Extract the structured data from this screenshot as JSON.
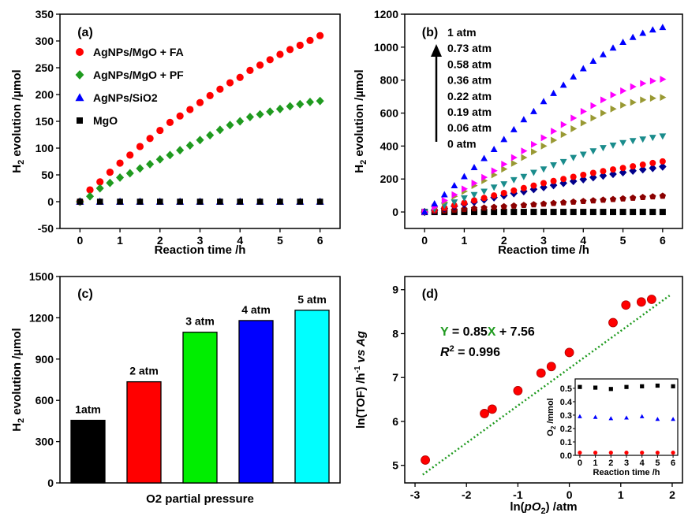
{
  "chart_data": [
    {
      "id": "a",
      "type": "scatter",
      "panel_label": "(a)",
      "xlabel": "Reaction time /h",
      "ylabel_main": "H",
      "ylabel_sub": "2",
      "ylabel_rest": " evolution /µmol",
      "xlim": [
        -0.5,
        6.5
      ],
      "ylim": [
        -50,
        350
      ],
      "xticks": [
        "0",
        "1",
        "2",
        "3",
        "4",
        "5",
        "6"
      ],
      "yticks": [
        "-50",
        "0",
        "50",
        "100",
        "150",
        "200",
        "250",
        "300",
        "350"
      ],
      "series": [
        {
          "name": "AgNPs/MgO + FA",
          "color": "#ff0000",
          "marker": "circle",
          "x": [
            0,
            0.25,
            0.5,
            0.75,
            1,
            1.25,
            1.5,
            1.75,
            2,
            2.25,
            2.5,
            2.75,
            3,
            3.25,
            3.5,
            3.75,
            4,
            4.25,
            4.5,
            4.75,
            5,
            5.25,
            5.5,
            5.75,
            6
          ],
          "y": [
            0,
            22,
            37,
            55,
            72,
            87,
            103,
            118,
            133,
            148,
            160,
            172,
            185,
            198,
            210,
            222,
            232,
            245,
            255,
            265,
            275,
            284,
            292,
            301,
            310
          ]
        },
        {
          "name": "AgNPs/MgO + PF",
          "color": "#1f9a1f",
          "marker": "diamond",
          "x": [
            0,
            0.25,
            0.5,
            0.75,
            1,
            1.25,
            1.5,
            1.75,
            2,
            2.25,
            2.5,
            2.75,
            3,
            3.25,
            3.5,
            3.75,
            4,
            4.25,
            4.5,
            4.75,
            5,
            5.25,
            5.5,
            5.75,
            6
          ],
          "y": [
            0,
            10,
            25,
            35,
            45,
            53,
            62,
            70,
            79,
            87,
            96,
            105,
            115,
            124,
            134,
            143,
            150,
            158,
            163,
            168,
            173,
            178,
            182,
            186,
            188
          ]
        },
        {
          "name": "AgNPs/SiO2",
          "color": "#0000ff",
          "marker": "triangle",
          "x": [
            0,
            0.5,
            1,
            1.5,
            2,
            2.5,
            3,
            3.5,
            4,
            4.5,
            5,
            5.5,
            6
          ],
          "y": [
            0,
            0,
            0,
            0,
            0,
            0,
            0,
            0,
            0,
            0,
            0,
            0,
            0
          ]
        },
        {
          "name": "MgO",
          "color": "#000000",
          "marker": "square",
          "x": [
            0,
            0.5,
            1,
            1.5,
            2,
            2.5,
            3,
            3.5,
            4,
            4.5,
            5,
            5.5,
            6
          ],
          "y": [
            0,
            0,
            0,
            0,
            0,
            0,
            0,
            0,
            0,
            0,
            0,
            0,
            0
          ]
        }
      ]
    },
    {
      "id": "b",
      "type": "scatter",
      "panel_label": "(b)",
      "xlabel": "Reaction time /h",
      "ylabel_main": "H",
      "ylabel_sub": "2",
      "ylabel_rest": " evolution /µmol",
      "xlim": [
        -0.5,
        6.5
      ],
      "ylim": [
        -100,
        1200
      ],
      "xticks": [
        "0",
        "1",
        "2",
        "3",
        "4",
        "5",
        "6"
      ],
      "yticks": [
        "0",
        "200",
        "400",
        "600",
        "800",
        "1000",
        "1200"
      ],
      "legend_labels": [
        "1 atm",
        "0.73 atm",
        "0.58 atm",
        "0.36 atm",
        "0.22 atm",
        "0.19 atm",
        "0.06 atm",
        "0 atm"
      ],
      "series": [
        {
          "name": "1 atm",
          "color": "#0000ff",
          "marker": "triangle",
          "x": [
            0,
            0.25,
            0.5,
            0.75,
            1,
            1.25,
            1.5,
            1.75,
            2,
            2.25,
            2.5,
            2.75,
            3,
            3.25,
            3.5,
            3.75,
            4,
            4.25,
            4.5,
            4.75,
            5,
            5.25,
            5.5,
            5.75,
            6
          ],
          "y": [
            0,
            50,
            105,
            160,
            215,
            270,
            325,
            380,
            440,
            500,
            560,
            610,
            670,
            720,
            770,
            820,
            870,
            915,
            955,
            995,
            1030,
            1060,
            1085,
            1105,
            1120
          ]
        },
        {
          "name": "0.73 atm",
          "color": "#ff00ff",
          "marker": "triangle-right",
          "x": [
            0,
            0.25,
            0.5,
            0.75,
            1,
            1.25,
            1.5,
            1.75,
            2,
            2.25,
            2.5,
            2.75,
            3,
            3.25,
            3.5,
            3.75,
            4,
            4.25,
            4.5,
            4.75,
            5,
            5.25,
            5.5,
            5.75,
            6
          ],
          "y": [
            0,
            30,
            70,
            105,
            140,
            175,
            210,
            250,
            290,
            330,
            370,
            410,
            450,
            490,
            530,
            570,
            610,
            645,
            680,
            710,
            735,
            760,
            780,
            795,
            805
          ]
        },
        {
          "name": "0.58 atm",
          "color": "#999933",
          "marker": "triangle-right",
          "x": [
            0,
            0.25,
            0.5,
            0.75,
            1,
            1.25,
            1.5,
            1.75,
            2,
            2.25,
            2.5,
            2.75,
            3,
            3.25,
            3.5,
            3.75,
            4,
            4.25,
            4.5,
            4.75,
            5,
            5.25,
            5.5,
            5.75,
            6
          ],
          "y": [
            0,
            28,
            60,
            95,
            125,
            160,
            190,
            225,
            260,
            295,
            330,
            365,
            400,
            435,
            470,
            505,
            540,
            570,
            600,
            625,
            648,
            665,
            680,
            690,
            695
          ]
        },
        {
          "name": "0.36 atm",
          "color": "#1a8c8c",
          "marker": "triangle-down",
          "x": [
            0,
            0.25,
            0.5,
            0.75,
            1,
            1.25,
            1.5,
            1.75,
            2,
            2.25,
            2.5,
            2.75,
            3,
            3.25,
            3.5,
            3.75,
            4,
            4.25,
            4.5,
            4.75,
            5,
            5.25,
            5.5,
            5.75,
            6
          ],
          "y": [
            0,
            18,
            40,
            60,
            85,
            105,
            125,
            150,
            170,
            195,
            215,
            240,
            260,
            285,
            305,
            330,
            350,
            370,
            390,
            405,
            420,
            432,
            442,
            452,
            460
          ]
        },
        {
          "name": "0.22 atm",
          "color": "#ff0000",
          "marker": "circle",
          "x": [
            0,
            0.25,
            0.5,
            0.75,
            1,
            1.25,
            1.5,
            1.75,
            2,
            2.25,
            2.5,
            2.75,
            3,
            3.25,
            3.5,
            3.75,
            4,
            4.25,
            4.5,
            4.75,
            5,
            5.25,
            5.5,
            5.75,
            6
          ],
          "y": [
            0,
            12,
            25,
            40,
            55,
            70,
            85,
            100,
            115,
            130,
            145,
            160,
            175,
            188,
            200,
            213,
            225,
            237,
            248,
            258,
            267,
            277,
            287,
            297,
            307
          ]
        },
        {
          "name": "0.19 atm",
          "color": "#00008b",
          "marker": "diamond",
          "x": [
            0,
            0.25,
            0.5,
            0.75,
            1,
            1.25,
            1.5,
            1.75,
            2,
            2.25,
            2.5,
            2.75,
            3,
            3.25,
            3.5,
            3.75,
            4,
            4.25,
            4.5,
            4.75,
            5,
            5.25,
            5.5,
            5.75,
            6
          ],
          "y": [
            0,
            10,
            22,
            35,
            48,
            61,
            75,
            88,
            100,
            113,
            125,
            138,
            150,
            162,
            175,
            187,
            198,
            210,
            220,
            230,
            240,
            250,
            258,
            266,
            275
          ]
        },
        {
          "name": "0.06 atm",
          "color": "#8b0000",
          "marker": "pentagon",
          "x": [
            0,
            0.25,
            0.5,
            0.75,
            1,
            1.25,
            1.5,
            1.75,
            2,
            2.25,
            2.5,
            2.75,
            3,
            3.25,
            3.5,
            3.75,
            4,
            4.25,
            4.5,
            4.75,
            5,
            5.25,
            5.5,
            5.75,
            6
          ],
          "y": [
            0,
            4,
            8,
            12,
            17,
            21,
            25,
            29,
            33,
            37,
            41,
            45,
            49,
            53,
            57,
            61,
            65,
            69,
            73,
            77,
            81,
            85,
            89,
            93,
            97
          ]
        },
        {
          "name": "0 atm",
          "color": "#000000",
          "marker": "square",
          "x": [
            0,
            0.25,
            0.5,
            0.75,
            1,
            1.25,
            1.5,
            1.75,
            2,
            2.25,
            2.5,
            2.75,
            3,
            3.25,
            3.5,
            3.75,
            4,
            4.25,
            4.5,
            4.75,
            5,
            5.25,
            5.5,
            5.75,
            6
          ],
          "y": [
            0,
            0,
            0,
            0,
            0,
            0,
            0,
            0,
            0,
            0,
            0,
            0,
            0,
            0,
            0,
            0,
            0,
            0,
            0,
            0,
            0,
            0,
            0,
            0,
            0
          ]
        }
      ]
    },
    {
      "id": "c",
      "type": "bar",
      "panel_label": "(c)",
      "xlabel": "O2 partial pressure",
      "ylabel_main": "H",
      "ylabel_sub": "2",
      "ylabel_rest": " evolution /µmol",
      "ylim": [
        0,
        1500
      ],
      "yticks": [
        "0",
        "300",
        "600",
        "900",
        "1200",
        "1500"
      ],
      "categories": [
        "1atm",
        "2 atm",
        "3 atm",
        "4 atm",
        "5 atm"
      ],
      "values": [
        455,
        735,
        1095,
        1180,
        1255
      ],
      "colors": [
        "#000000",
        "#ff0000",
        "#00ee00",
        "#0000ff",
        "#00ffff"
      ]
    },
    {
      "id": "d",
      "type": "scatter",
      "panel_label": "(d)",
      "xlabel_parts": [
        "ln(",
        "pO",
        "2",
        ") /atm"
      ],
      "ylabel_parts": [
        "ln(TOF) /h",
        "-1",
        " vs Ag"
      ],
      "xlim": [
        -3.2,
        2.2
      ],
      "ylim": [
        4.6,
        9.3
      ],
      "xticks": [
        "-3",
        "-2",
        "-1",
        "0",
        "1",
        "2"
      ],
      "yticks": [
        "5",
        "6",
        "7",
        "8",
        "9"
      ],
      "equation_parts": [
        "Y",
        " = 0.85",
        "X",
        " + 7.56"
      ],
      "r2_parts": [
        "R",
        "2",
        " = 0.996"
      ],
      "fit": {
        "slope": 0.85,
        "intercept": 7.56,
        "color": "#1f9a1f"
      },
      "points": {
        "color": "#ff0000",
        "x": [
          -2.8,
          -1.65,
          -1.5,
          -1.0,
          -0.55,
          -0.35,
          0.0,
          0.85,
          1.1,
          1.4,
          1.6
        ],
        "y": [
          5.12,
          6.18,
          6.28,
          6.7,
          7.1,
          7.25,
          7.57,
          8.25,
          8.65,
          8.72,
          8.78
        ]
      },
      "inset": {
        "xlabel": "Reaction time /h",
        "ylabel_parts": [
          "O",
          "2",
          " /mmol"
        ],
        "xlim": [
          -0.3,
          6.3
        ],
        "ylim": [
          0,
          0.57
        ],
        "xticks": [
          "0",
          "1",
          "2",
          "3",
          "4",
          "5",
          "6"
        ],
        "yticks": [
          "0.0",
          "0.1",
          "0.2",
          "0.3",
          "0.4",
          "0.5"
        ],
        "series": [
          {
            "color": "#000000",
            "marker": "square",
            "x": [
              0,
              1,
              2,
              3,
              4,
              5,
              6
            ],
            "y": [
              0.51,
              0.505,
              0.495,
              0.51,
              0.515,
              0.52,
              0.515
            ]
          },
          {
            "color": "#0000ff",
            "marker": "triangle",
            "x": [
              0,
              1,
              2,
              3,
              4,
              5,
              6
            ],
            "y": [
              0.29,
              0.285,
              0.275,
              0.28,
              0.29,
              0.27,
              0.27
            ]
          },
          {
            "color": "#ff0000",
            "marker": "circle",
            "x": [
              0,
              1,
              2,
              3,
              4,
              5,
              6
            ],
            "y": [
              0.02,
              0.02,
              0.02,
              0.02,
              0.02,
              0.02,
              0.02
            ]
          }
        ]
      }
    }
  ]
}
